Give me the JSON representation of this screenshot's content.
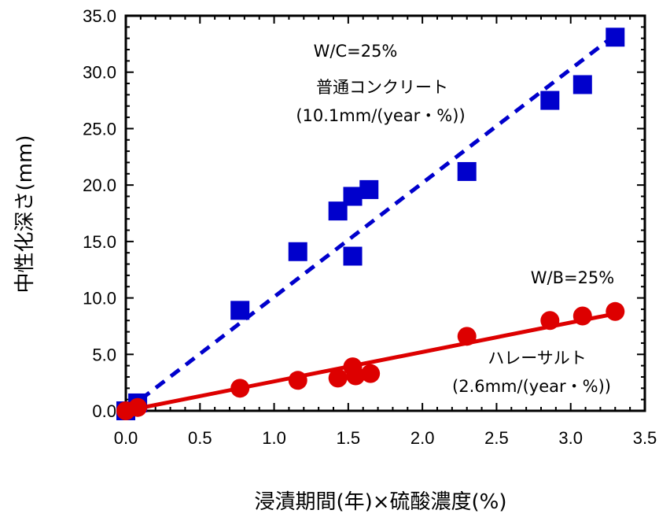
{
  "chart_data": {
    "type": "scatter",
    "xlabel": "浸漬期間(年)×硫酸濃度(%)",
    "ylabel": "中性化深さ(mm)",
    "xlim": [
      0.0,
      3.5
    ],
    "ylim": [
      0.0,
      35.0
    ],
    "x_ticks": [
      "0.0",
      "0.5",
      "1.0",
      "1.5",
      "2.0",
      "2.5",
      "3.0",
      "3.5"
    ],
    "y_ticks": [
      "0.0",
      "5.0",
      "10.0",
      "15.0",
      "20.0",
      "25.0",
      "30.0",
      "35.0"
    ],
    "grid": false,
    "series": [
      {
        "marker": "square",
        "color": "#0000cc",
        "x": [
          0.0,
          0.08,
          0.77,
          1.16,
          1.43,
          1.53,
          1.53,
          1.64,
          2.3,
          2.86,
          3.08,
          3.3
        ],
        "y": [
          0.0,
          0.7,
          8.9,
          14.1,
          17.7,
          19.0,
          13.7,
          19.6,
          21.2,
          27.5,
          28.9,
          33.1
        ],
        "fit": {
          "style": "dashed",
          "color": "#0000cc",
          "x": [
            0.0,
            3.3
          ],
          "y": [
            0.0,
            33.3
          ]
        }
      },
      {
        "marker": "circle",
        "color": "#dd0000",
        "x": [
          0.0,
          0.08,
          0.77,
          1.16,
          1.43,
          1.53,
          1.55,
          1.65,
          2.3,
          2.86,
          3.08,
          3.3
        ],
        "y": [
          0.0,
          0.3,
          2.0,
          2.7,
          2.9,
          3.9,
          3.1,
          3.3,
          6.6,
          8.0,
          8.4,
          8.8
        ],
        "fit": {
          "style": "solid",
          "color": "#dd0000",
          "x": [
            0.0,
            3.3
          ],
          "y": [
            0.0,
            8.6
          ]
        }
      }
    ],
    "annotations": {
      "blue_line1": "W/C=25%",
      "blue_line2": "普通コンクリート",
      "blue_line3": "(10.1mm/(year・%))",
      "red_line1": "W/B=25%",
      "red_line2": "ハレーサルト",
      "red_line3": "(2.6mm/(year・%))"
    }
  }
}
